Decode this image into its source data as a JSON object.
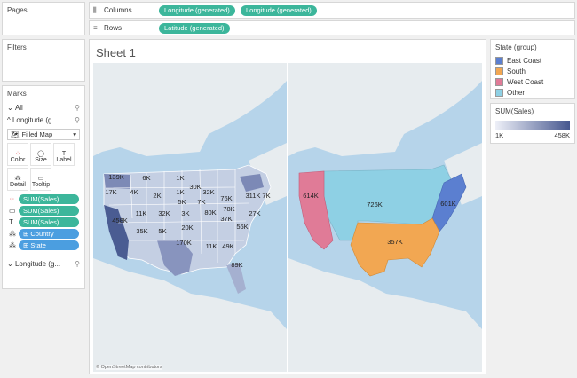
{
  "pages": {
    "title": "Pages"
  },
  "filters": {
    "title": "Filters"
  },
  "marks": {
    "title": "Marks",
    "all": "All",
    "longitude1": "Longitude (g...",
    "mark_type": "Filled Map",
    "cards": [
      "Color",
      "Size",
      "Label",
      "Detail",
      "Tooltip"
    ],
    "fields": [
      "SUM(Sales)",
      "SUM(Sales)",
      "SUM(Sales)",
      "Country",
      "State"
    ],
    "longitude2": "Longitude (g..."
  },
  "shelves": {
    "columns_label": "Columns",
    "rows_label": "Rows",
    "columns": [
      "Longitude (generated)",
      "Longitude (generated)"
    ],
    "rows": [
      "Latitude (generated)"
    ]
  },
  "sheet": {
    "title": "Sheet 1",
    "attribution": "© OpenStreetMap contributors"
  },
  "legend_state": {
    "title": "State (group)",
    "items": [
      {
        "label": "East Coast",
        "color": "#5b7fd0"
      },
      {
        "label": "South",
        "color": "#f2a752"
      },
      {
        "label": "West Coast",
        "color": "#e07b97"
      },
      {
        "label": "Other",
        "color": "#8ed0e4"
      }
    ]
  },
  "legend_sales": {
    "title": "SUM(Sales)",
    "min": "1K",
    "max": "458K"
  },
  "map_left_labels": [
    "139K",
    "6K",
    "1K",
    "17K",
    "4K",
    "30K",
    "311K",
    "2K",
    "1K",
    "32K",
    "76K",
    "7K",
    "7K",
    "5K",
    "27K",
    "11K",
    "32K",
    "3K",
    "80K",
    "458K",
    "35K",
    "5K",
    "20K",
    "78K",
    "37K",
    "56K",
    "170K",
    "11K",
    "49K",
    "89K"
  ],
  "map_right_labels": [
    "614K",
    "726K",
    "601K",
    "357K"
  ]
}
